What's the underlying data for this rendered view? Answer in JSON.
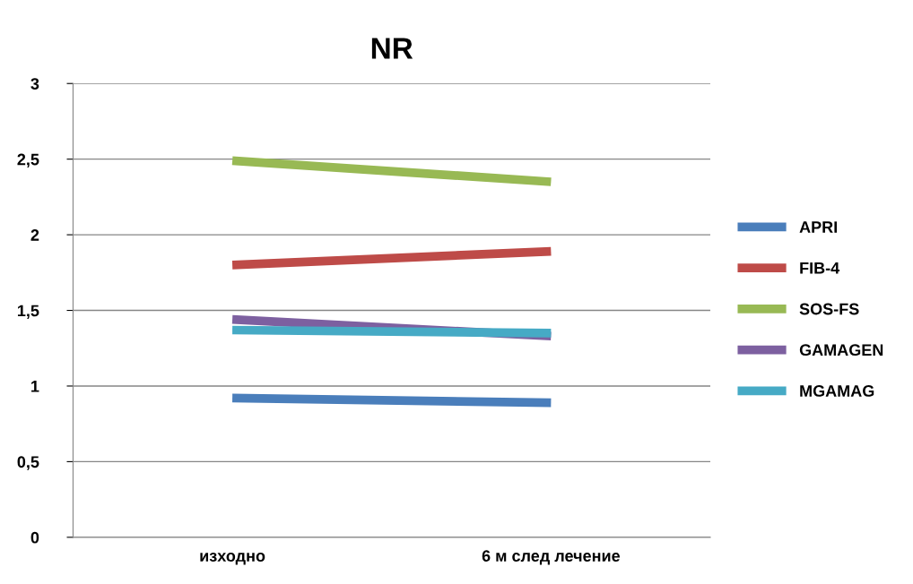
{
  "chart_data": {
    "type": "line",
    "title": "NR",
    "categories": [
      "изходно",
      "6 м след лечение"
    ],
    "series": [
      {
        "name": "APRI",
        "color": "#4a7ebb",
        "values": [
          0.92,
          0.89
        ]
      },
      {
        "name": "FIB-4",
        "color": "#be4b48",
        "values": [
          1.8,
          1.89
        ]
      },
      {
        "name": "SOS-FS",
        "color": "#98b954",
        "values": [
          2.49,
          2.35
        ]
      },
      {
        "name": "GAMAGEN",
        "color": "#7d60a0",
        "values": [
          1.44,
          1.33
        ]
      },
      {
        "name": "MGAMAG",
        "color": "#46aac5",
        "values": [
          1.37,
          1.35
        ]
      }
    ],
    "ylim": [
      0,
      3
    ],
    "yticks": [
      0,
      {
        "value": 0.5,
        "label": "0,5"
      },
      1,
      {
        "value": 1.5,
        "label": "1,5"
      },
      2,
      {
        "value": 2.5,
        "label": "2,5"
      },
      3
    ],
    "grid": "y",
    "legend": "right",
    "marker": "none",
    "line_style": "solid"
  }
}
